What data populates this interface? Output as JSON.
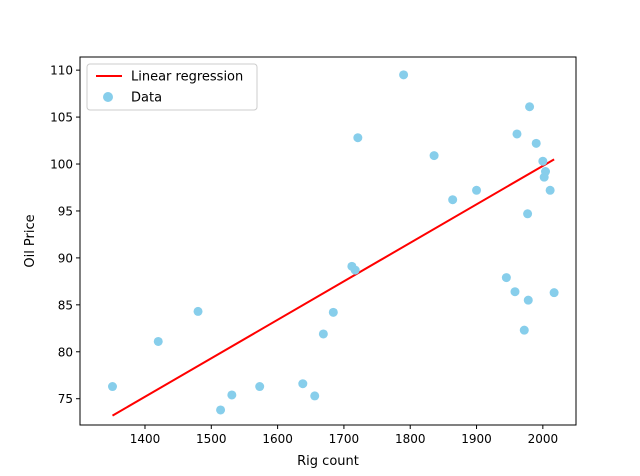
{
  "chart_data": {
    "type": "scatter",
    "title": "",
    "xlabel": "Rig count",
    "ylabel": "Oil Price",
    "xlim": [
      1302,
      2050
    ],
    "ylim": [
      72.2,
      111.4
    ],
    "xticks": [
      1400,
      1500,
      1600,
      1700,
      1800,
      1900,
      2000
    ],
    "yticks": [
      75,
      80,
      85,
      90,
      95,
      100,
      105,
      110
    ],
    "grid": false,
    "legend_position": "upper left",
    "series": [
      {
        "name": "Linear regression",
        "type": "line",
        "color": "#ff0000",
        "x": [
          1351,
          2017
        ],
        "y": [
          73.2,
          100.5
        ]
      },
      {
        "name": "Data",
        "type": "scatter",
        "color": "#87ceeb",
        "x": [
          1351,
          1420,
          1480,
          1514,
          1531,
          1573,
          1638,
          1656,
          1669,
          1684,
          1712,
          1717,
          1721,
          1790,
          1836,
          1864,
          1900,
          1945,
          1958,
          1961,
          1972,
          1977,
          1978,
          1980,
          1990,
          2000,
          2002,
          2004,
          2011,
          2017
        ],
        "y": [
          76.3,
          81.1,
          84.3,
          73.8,
          75.4,
          76.3,
          76.6,
          75.3,
          81.9,
          84.2,
          89.1,
          88.7,
          102.8,
          109.5,
          100.9,
          96.2,
          97.2,
          87.9,
          86.4,
          103.2,
          82.3,
          94.7,
          85.5,
          106.1,
          102.2,
          100.3,
          98.6,
          99.2,
          97.2,
          86.3
        ]
      }
    ]
  }
}
